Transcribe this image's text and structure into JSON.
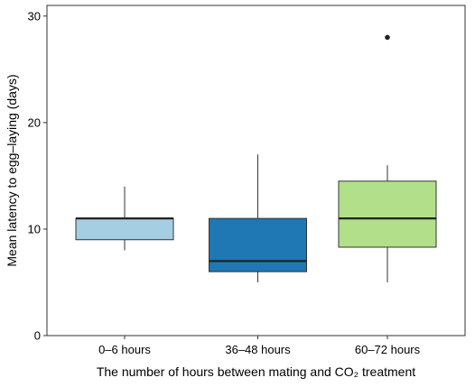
{
  "chart_data": {
    "type": "box",
    "xlabel": "The number of hours between mating and CO₂ treatment",
    "ylabel": "Mean latency to egg–laying (days)",
    "ylim": [
      0,
      31
    ],
    "yticks": [
      "0",
      "10",
      "20",
      "30"
    ],
    "categories": [
      "0–6 hours",
      "36–48 hours",
      "60–72 hours"
    ],
    "boxes": [
      {
        "category": "0–6 hours",
        "whisker_low": 8,
        "q1": 9,
        "median": 11,
        "q3": 11,
        "whisker_high": 14,
        "outliers": [],
        "color": "#a6cee3"
      },
      {
        "category": "36–48 hours",
        "whisker_low": 5,
        "q1": 6,
        "median": 7,
        "q3": 11,
        "whisker_high": 17,
        "outliers": [],
        "color": "#1f78b4"
      },
      {
        "category": "60–72 hours",
        "whisker_low": 5,
        "q1": 8.3,
        "median": 11,
        "q3": 14.5,
        "whisker_high": 16,
        "outliers": [
          28
        ],
        "color": "#b2df8a"
      }
    ],
    "grid": false,
    "legend": "none"
  }
}
